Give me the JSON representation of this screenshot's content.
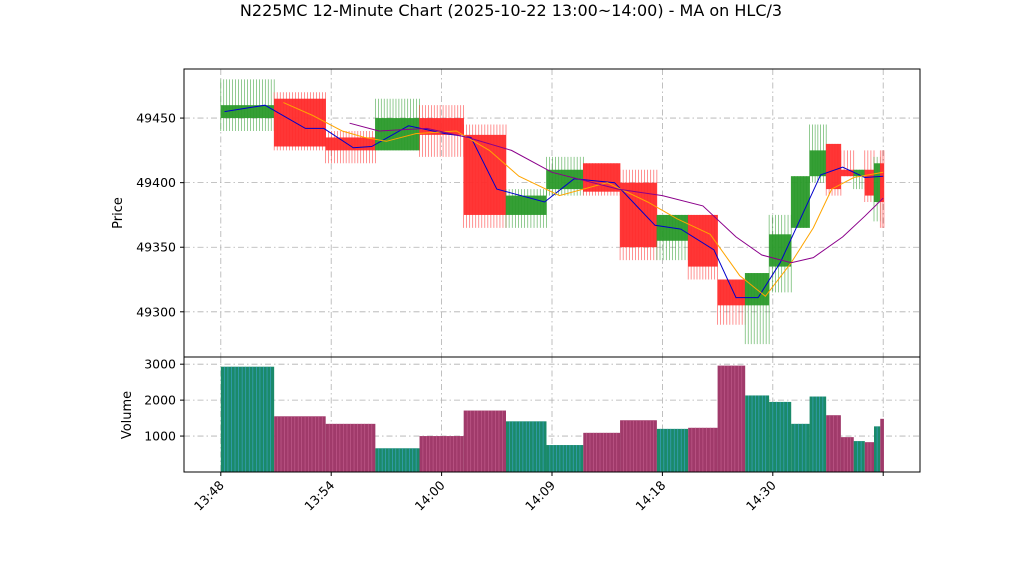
{
  "chart_data": {
    "type": "candlestick",
    "title": "N225MC 12-Minute Chart (2025-10-22 13:00~14:00) - MA on HLC/3",
    "price_panel": {
      "ylabel": "Price",
      "ylim": [
        49265,
        49488
      ],
      "yticks": [
        49300,
        49350,
        49400,
        49450
      ],
      "grid": true
    },
    "volume_panel": {
      "ylabel": "Volume",
      "ylim": [
        0,
        3200
      ],
      "yticks": [
        1000,
        2000,
        3000
      ],
      "grid": true
    },
    "xlim": [
      -1.0,
      19.0
    ],
    "x_tick_labels": [
      {
        "pos": 0,
        "label": "13:48"
      },
      {
        "pos": 3,
        "label": "13:54"
      },
      {
        "pos": 6,
        "label": "14:00"
      },
      {
        "pos": 9,
        "label": "14:09"
      },
      {
        "pos": 12,
        "label": "14:18"
      },
      {
        "pos": 15,
        "label": "14:30"
      },
      {
        "pos": 18,
        "label": ""
      }
    ],
    "colors": {
      "up": "#2a9a2a",
      "down": "#ff2b2b",
      "ma_fast": "#0000cc",
      "ma_mid": "#ffa500",
      "ma_slow": "#8b008b",
      "volume_up": "#1a8a6a",
      "volume_down": "#a03a6a"
    },
    "candles": [
      {
        "x0": 0.0,
        "x1": 1.45,
        "open": 49450,
        "close": 49460,
        "high": 49480,
        "low": 49440,
        "volume": 2930
      },
      {
        "x0": 1.45,
        "x1": 2.85,
        "open": 49465,
        "close": 49428,
        "high": 49470,
        "low": 49425,
        "volume": 1550
      },
      {
        "x0": 2.85,
        "x1": 4.2,
        "open": 49435,
        "close": 49425,
        "high": 49440,
        "low": 49415,
        "volume": 1340
      },
      {
        "x0": 4.2,
        "x1": 5.4,
        "open": 49425,
        "close": 49450,
        "high": 49465,
        "low": 49425,
        "volume": 660
      },
      {
        "x0": 5.4,
        "x1": 6.6,
        "open": 49450,
        "close": 49437,
        "high": 49460,
        "low": 49420,
        "volume": 1000
      },
      {
        "x0": 6.6,
        "x1": 7.75,
        "open": 49437,
        "close": 49375,
        "high": 49445,
        "low": 49365,
        "volume": 1710
      },
      {
        "x0": 7.75,
        "x1": 8.85,
        "open": 49375,
        "close": 49390,
        "high": 49395,
        "low": 49365,
        "volume": 1410
      },
      {
        "x0": 8.85,
        "x1": 9.85,
        "open": 49395,
        "close": 49410,
        "high": 49420,
        "low": 49390,
        "volume": 750
      },
      {
        "x0": 9.85,
        "x1": 10.85,
        "open": 49415,
        "close": 49393,
        "high": 49415,
        "low": 49390,
        "volume": 1090
      },
      {
        "x0": 10.85,
        "x1": 11.85,
        "open": 49400,
        "close": 49350,
        "high": 49410,
        "low": 49340,
        "volume": 1440
      },
      {
        "x0": 11.85,
        "x1": 12.7,
        "open": 49355,
        "close": 49375,
        "high": 49375,
        "low": 49340,
        "volume": 1200
      },
      {
        "x0": 12.7,
        "x1": 13.5,
        "open": 49375,
        "close": 49335,
        "high": 49375,
        "low": 49325,
        "volume": 1230
      },
      {
        "x0": 13.5,
        "x1": 14.25,
        "open": 49325,
        "close": 49305,
        "high": 49325,
        "low": 49290,
        "volume": 2960
      },
      {
        "x0": 14.25,
        "x1": 14.9,
        "open": 49305,
        "close": 49330,
        "high": 49330,
        "low": 49275,
        "volume": 2130
      },
      {
        "x0": 14.9,
        "x1": 15.5,
        "open": 49335,
        "close": 49360,
        "high": 49375,
        "low": 49315,
        "volume": 1950
      },
      {
        "x0": 15.5,
        "x1": 16.0,
        "open": 49365,
        "close": 49405,
        "high": 49405,
        "low": 49365,
        "volume": 1340
      },
      {
        "x0": 16.0,
        "x1": 16.45,
        "open": 49405,
        "close": 49425,
        "high": 49445,
        "low": 49400,
        "volume": 2100
      },
      {
        "x0": 16.45,
        "x1": 16.85,
        "open": 49430,
        "close": 49395,
        "high": 49430,
        "low": 49390,
        "volume": 1580
      },
      {
        "x0": 16.85,
        "x1": 17.2,
        "open": 49410,
        "close": 49405,
        "high": 49425,
        "low": 49405,
        "volume": 970
      },
      {
        "x0": 17.2,
        "x1": 17.5,
        "open": 49405,
        "close": 49410,
        "high": 49410,
        "low": 49395,
        "volume": 860
      },
      {
        "x0": 17.5,
        "x1": 17.75,
        "open": 49410,
        "close": 49390,
        "high": 49425,
        "low": 49385,
        "volume": 830
      },
      {
        "x0": 17.75,
        "x1": 17.92,
        "open": 49385,
        "close": 49415,
        "high": 49420,
        "low": 49370,
        "volume": 1270
      },
      {
        "x0": 17.92,
        "x1": 18.02,
        "open": 49415,
        "close": 49385,
        "high": 49425,
        "low": 49365,
        "volume": 1480
      }
    ],
    "ma_lines": [
      {
        "name": "fast",
        "color_key": "ma_fast",
        "points": [
          [
            0.1,
            49455
          ],
          [
            1.2,
            49460
          ],
          [
            2.3,
            49442
          ],
          [
            2.8,
            49442
          ],
          [
            3.6,
            49427
          ],
          [
            4.1,
            49428
          ],
          [
            5.1,
            49444
          ],
          [
            6.1,
            49438
          ],
          [
            6.8,
            49435
          ],
          [
            7.5,
            49395
          ],
          [
            8.8,
            49385
          ],
          [
            9.6,
            49403
          ],
          [
            10.7,
            49400
          ],
          [
            11.8,
            49367
          ],
          [
            12.5,
            49364
          ],
          [
            13.4,
            49348
          ],
          [
            14.0,
            49311
          ],
          [
            14.6,
            49311
          ],
          [
            15.2,
            49338
          ],
          [
            15.8,
            49375
          ],
          [
            16.3,
            49406
          ],
          [
            16.9,
            49412
          ],
          [
            17.5,
            49404
          ],
          [
            18.0,
            49405
          ]
        ]
      },
      {
        "name": "mid",
        "color_key": "ma_mid",
        "points": [
          [
            1.7,
            49462
          ],
          [
            2.5,
            49452
          ],
          [
            3.3,
            49440
          ],
          [
            3.9,
            49435
          ],
          [
            4.5,
            49432
          ],
          [
            5.3,
            49438
          ],
          [
            6.4,
            49440
          ],
          [
            7.3,
            49425
          ],
          [
            8.1,
            49405
          ],
          [
            9.2,
            49390
          ],
          [
            10.5,
            49400
          ],
          [
            11.6,
            49385
          ],
          [
            12.4,
            49372
          ],
          [
            13.3,
            49360
          ],
          [
            14.1,
            49328
          ],
          [
            14.8,
            49312
          ],
          [
            15.5,
            49338
          ],
          [
            16.1,
            49365
          ],
          [
            16.6,
            49395
          ],
          [
            17.2,
            49404
          ],
          [
            18.0,
            49408
          ]
        ]
      },
      {
        "name": "slow",
        "color_key": "ma_slow",
        "points": [
          [
            3.5,
            49446
          ],
          [
            4.3,
            49440
          ],
          [
            5.6,
            49442
          ],
          [
            6.7,
            49435
          ],
          [
            7.9,
            49425
          ],
          [
            9.0,
            49408
          ],
          [
            10.8,
            49395
          ],
          [
            12.0,
            49390
          ],
          [
            13.1,
            49382
          ],
          [
            14.0,
            49358
          ],
          [
            14.7,
            49344
          ],
          [
            15.5,
            49338
          ],
          [
            16.1,
            49342
          ],
          [
            16.9,
            49358
          ],
          [
            17.5,
            49374
          ],
          [
            18.0,
            49388
          ]
        ]
      }
    ]
  }
}
